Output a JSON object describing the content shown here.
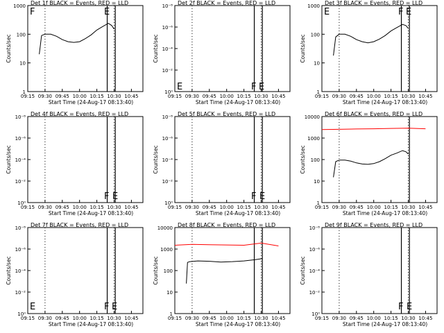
{
  "figure_colors": {
    "events": "#000000",
    "lld": "#ff0000",
    "background": "#ffffff"
  },
  "chart_data": [
    {
      "type": "line",
      "detector": "1f",
      "title": "Det 1f BLACK = Events, RED = LLD",
      "xlabel": "Start Time (24-Aug-17 08:13:40)",
      "ylabel": "Counts/sec",
      "x_ticks": [
        "09:15",
        "09:30",
        "09:45",
        "10:00",
        "10:15",
        "10:30",
        "10:45"
      ],
      "y_ticks": [
        "1",
        "10",
        "100",
        "1000"
      ],
      "ylim": [
        1,
        1000
      ],
      "yscale": "log",
      "dotted_lines_at": [
        "09:30",
        "10:30"
      ],
      "solid_lines_at": [
        "10:24",
        "10:31"
      ],
      "flags": [
        "F",
        "E"
      ],
      "series": [
        {
          "color_key": "events",
          "x": [
            "09:25",
            "09:27",
            "09:30",
            "09:35",
            "09:40",
            "09:45",
            "09:50",
            "09:55",
            "10:00",
            "10:05",
            "10:10",
            "10:15",
            "10:20",
            "10:25",
            "10:28",
            "10:30"
          ],
          "values": [
            20,
            90,
            100,
            100,
            85,
            65,
            55,
            52,
            55,
            70,
            95,
            140,
            185,
            240,
            200,
            150
          ]
        }
      ]
    },
    {
      "type": "line",
      "detector": "2f",
      "title": "Det 2f BLACK = Events, RED = LLD",
      "xlabel": "Start Time (24-Aug-17 08:13:40)",
      "ylabel": "Counts/sec",
      "x_ticks": [
        "09:15",
        "09:30",
        "09:45",
        "10:00",
        "10:15",
        "10:30",
        "10:45"
      ],
      "y_ticks": [
        "10⁰",
        "10⁻²",
        "10⁻⁴",
        "10⁻⁶",
        "10⁻⁸"
      ],
      "yscale": "log",
      "dotted_lines_at": [
        "09:30",
        "10:30"
      ],
      "solid_lines_at": [
        "10:24",
        "10:31"
      ],
      "flags": [
        "E",
        "F",
        "E"
      ],
      "series": []
    },
    {
      "type": "line",
      "detector": "3f",
      "title": "Det 3f BLACK = Events, RED = LLD",
      "xlabel": "Start Time (24-Aug-17 08:13:40)",
      "ylabel": "Counts/sec",
      "x_ticks": [
        "09:15",
        "09:30",
        "09:45",
        "10:00",
        "10:15",
        "10:30",
        "10:45"
      ],
      "y_ticks": [
        "1",
        "10",
        "100",
        "1000"
      ],
      "ylim": [
        1,
        1000
      ],
      "yscale": "log",
      "dotted_lines_at": [
        "09:30",
        "10:30"
      ],
      "solid_lines_at": [
        "10:24",
        "10:31"
      ],
      "flags": [
        "E",
        "F",
        "E"
      ],
      "series": [
        {
          "color_key": "events",
          "x": [
            "09:25",
            "09:27",
            "09:30",
            "09:35",
            "09:40",
            "09:45",
            "09:50",
            "09:55",
            "10:00",
            "10:05",
            "10:10",
            "10:15",
            "10:20",
            "10:25",
            "10:28",
            "10:30"
          ],
          "values": [
            18,
            80,
            100,
            100,
            85,
            65,
            55,
            50,
            55,
            68,
            90,
            130,
            170,
            220,
            200,
            160
          ]
        }
      ]
    },
    {
      "type": "line",
      "detector": "4f",
      "title": "Det 4f BLACK = Events, RED = LLD",
      "xlabel": "Start Time (24-Aug-17 08:13:40)",
      "ylabel": "Counts/sec",
      "x_ticks": [
        "09:15",
        "09:30",
        "09:45",
        "10:00",
        "10:15",
        "10:30",
        "10:45"
      ],
      "y_ticks": [
        "10⁰",
        "10⁻²",
        "10⁻⁴",
        "10⁻⁶",
        "10⁻⁸"
      ],
      "yscale": "log",
      "dotted_lines_at": [
        "09:30",
        "10:30"
      ],
      "solid_lines_at": [
        "10:24",
        "10:31"
      ],
      "flags": [
        "F",
        "E"
      ],
      "series": []
    },
    {
      "type": "line",
      "detector": "5f",
      "title": "Det 5f BLACK = Events, RED = LLD",
      "xlabel": "Start Time (24-Aug-17 08:13:40)",
      "ylabel": "Counts/sec",
      "x_ticks": [
        "09:15",
        "09:30",
        "09:45",
        "10:00",
        "10:15",
        "10:30",
        "10:45"
      ],
      "y_ticks": [
        "10⁰",
        "10⁻²",
        "10⁻⁴",
        "10⁻⁶",
        "10⁻⁸"
      ],
      "yscale": "log",
      "dotted_lines_at": [
        "09:30",
        "10:30"
      ],
      "solid_lines_at": [
        "10:24",
        "10:31"
      ],
      "flags": [
        "F",
        "E"
      ],
      "series": []
    },
    {
      "type": "line",
      "detector": "6f",
      "title": "Det 6f BLACK = Events, RED = LLD",
      "xlabel": "Start Time (24-Aug-17 08:13:40)",
      "ylabel": "Counts/sec",
      "x_ticks": [
        "09:15",
        "09:30",
        "09:45",
        "10:00",
        "10:15",
        "10:30",
        "10:45"
      ],
      "y_ticks": [
        "1",
        "10",
        "100",
        "1000",
        "10000"
      ],
      "ylim": [
        1,
        10000
      ],
      "yscale": "log",
      "dotted_lines_at": [
        "09:30",
        "10:30"
      ],
      "solid_lines_at": [
        "10:31"
      ],
      "flags": [],
      "series": [
        {
          "color_key": "lld",
          "x": [
            "09:15",
            "09:30",
            "09:45",
            "10:00",
            "10:15",
            "10:30",
            "10:45"
          ],
          "values": [
            2500,
            2550,
            2650,
            2700,
            2800,
            2900,
            2700
          ]
        },
        {
          "color_key": "events",
          "x": [
            "09:25",
            "09:27",
            "09:30",
            "09:35",
            "09:40",
            "09:45",
            "09:50",
            "09:55",
            "10:00",
            "10:05",
            "10:10",
            "10:15",
            "10:20",
            "10:25",
            "10:28",
            "10:30"
          ],
          "values": [
            15,
            80,
            95,
            95,
            85,
            70,
            62,
            60,
            65,
            80,
            110,
            160,
            200,
            260,
            230,
            180
          ]
        }
      ]
    },
    {
      "type": "line",
      "detector": "7f",
      "title": "Det 7f BLACK = Events, RED = LLD",
      "xlabel": "Start Time (24-Aug-17 08:13:40)",
      "ylabel": "Counts/sec",
      "x_ticks": [
        "09:15",
        "09:30",
        "09:45",
        "10:00",
        "10:15",
        "10:30",
        "10:45"
      ],
      "y_ticks": [
        "10⁰",
        "10⁻²",
        "10⁻⁴",
        "10⁻⁶",
        "10⁻⁸"
      ],
      "yscale": "log",
      "dotted_lines_at": [
        "09:30",
        "10:30"
      ],
      "solid_lines_at": [
        "10:24",
        "10:31"
      ],
      "flags": [
        "E",
        "F",
        "E"
      ],
      "series": []
    },
    {
      "type": "line",
      "detector": "8f",
      "title": "Det 8f BLACK = Events, RED = LLD",
      "xlabel": "Start Time (24-Aug-17 08:13:40)",
      "ylabel": "Counts/sec",
      "x_ticks": [
        "09:15",
        "09:30",
        "09:45",
        "10:00",
        "10:15",
        "10:30",
        "10:45"
      ],
      "y_ticks": [
        "1",
        "10",
        "100",
        "1000",
        "10000"
      ],
      "ylim": [
        1,
        10000
      ],
      "yscale": "log",
      "dotted_lines_at": [
        "09:30",
        "10:30"
      ],
      "solid_lines_at": [
        "10:24",
        "10:31"
      ],
      "flags": [],
      "series": [
        {
          "color_key": "lld",
          "x": [
            "09:15",
            "09:30",
            "09:45",
            "10:00",
            "10:15",
            "10:30",
            "10:45"
          ],
          "values": [
            1500,
            1650,
            1600,
            1550,
            1500,
            1900,
            1400
          ]
        },
        {
          "color_key": "events",
          "x": [
            "09:25",
            "09:26",
            "09:28",
            "09:35",
            "09:45",
            "09:55",
            "10:05",
            "10:15",
            "10:25",
            "10:31"
          ],
          "values": [
            25,
            240,
            260,
            280,
            270,
            250,
            260,
            280,
            320,
            360
          ]
        }
      ]
    },
    {
      "type": "line",
      "detector": "9f",
      "title": "Det 9f BLACK = Events, RED = LLD",
      "xlabel": "Start Time (24-Aug-17 08:13:40)",
      "ylabel": "Counts/sec",
      "x_ticks": [
        "09:15",
        "09:30",
        "09:45",
        "10:00",
        "10:15",
        "10:30",
        "10:45"
      ],
      "y_ticks": [
        "10⁰",
        "10⁻²",
        "10⁻⁴",
        "10⁻⁶",
        "10⁻⁸"
      ],
      "yscale": "log",
      "dotted_lines_at": [
        "09:30",
        "10:30"
      ],
      "solid_lines_at": [
        "10:24",
        "10:31"
      ],
      "flags": [
        "F",
        "E"
      ],
      "series": []
    }
  ]
}
